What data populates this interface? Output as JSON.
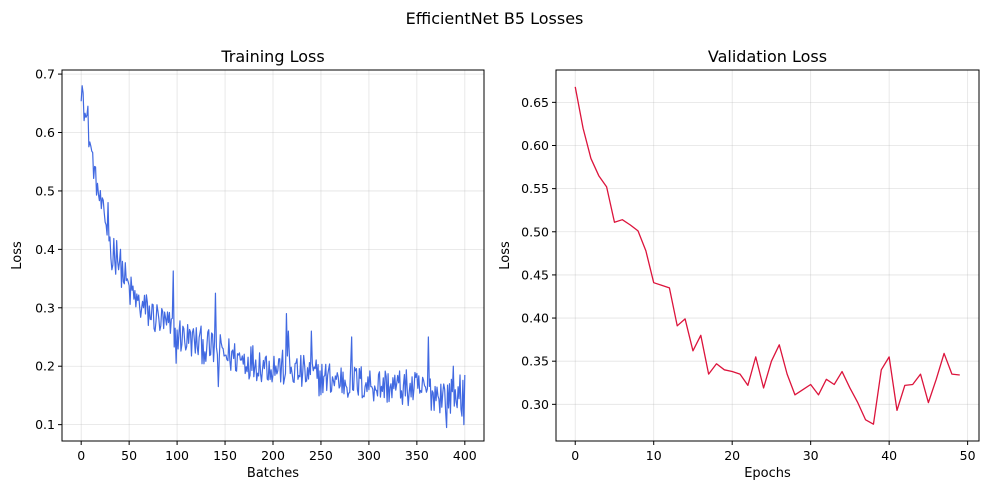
{
  "figure": {
    "title": "EfficientNet B5 Losses"
  },
  "chart_data": [
    {
      "type": "line",
      "title": "Training Loss",
      "xlabel": "Batches",
      "ylabel": "Loss",
      "xlim": [
        -20,
        420
      ],
      "ylim": [
        0.072,
        0.707
      ],
      "xticks": [
        0,
        50,
        100,
        150,
        200,
        250,
        300,
        350,
        400
      ],
      "yticks": [
        0.1,
        0.2,
        0.3,
        0.4,
        0.5,
        0.6,
        0.7
      ],
      "grid": true,
      "color": "#4169e1",
      "x_range": [
        0,
        400
      ],
      "trend_anchors": [
        [
          0,
          0.675
        ],
        [
          5,
          0.62
        ],
        [
          10,
          0.575
        ],
        [
          15,
          0.52
        ],
        [
          20,
          0.48
        ],
        [
          25,
          0.45
        ],
        [
          30,
          0.41
        ],
        [
          40,
          0.375
        ],
        [
          50,
          0.33
        ],
        [
          60,
          0.305
        ],
        [
          80,
          0.28
        ],
        [
          100,
          0.255
        ],
        [
          120,
          0.24
        ],
        [
          150,
          0.22
        ],
        [
          200,
          0.2
        ],
        [
          250,
          0.18
        ],
        [
          300,
          0.17
        ],
        [
          350,
          0.16
        ],
        [
          380,
          0.15
        ],
        [
          400,
          0.145
        ]
      ],
      "noise_amplitude": 0.032,
      "spikes": [
        [
          1,
          0.68
        ],
        [
          2,
          0.668
        ],
        [
          7,
          0.645
        ],
        [
          28,
          0.48
        ],
        [
          32,
          0.365
        ],
        [
          37,
          0.415
        ],
        [
          53,
          0.33
        ],
        [
          96,
          0.363
        ],
        [
          99,
          0.205
        ],
        [
          140,
          0.325
        ],
        [
          143,
          0.165
        ],
        [
          148,
          0.23
        ],
        [
          214,
          0.29
        ],
        [
          216,
          0.26
        ],
        [
          240,
          0.26
        ],
        [
          282,
          0.25
        ],
        [
          362,
          0.25
        ],
        [
          381,
          0.095
        ],
        [
          388,
          0.2
        ],
        [
          395,
          0.185
        ],
        [
          399,
          0.1
        ],
        [
          400,
          0.185
        ]
      ]
    },
    {
      "type": "line",
      "title": "Validation Loss",
      "xlabel": "Epochs",
      "ylabel": "Loss",
      "xlim": [
        -2.45,
        51.45
      ],
      "ylim": [
        0.2575,
        0.6875
      ],
      "xticks": [
        0,
        10,
        20,
        30,
        40,
        50
      ],
      "yticks": [
        0.3,
        0.35,
        0.4,
        0.45,
        0.5,
        0.55,
        0.6,
        0.65
      ],
      "grid": true,
      "color": "#dc143c",
      "x": [
        0,
        1,
        2,
        3,
        4,
        5,
        6,
        7,
        8,
        9,
        10,
        11,
        12,
        13,
        14,
        15,
        16,
        17,
        18,
        19,
        20,
        21,
        22,
        23,
        24,
        25,
        26,
        27,
        28,
        29,
        30,
        31,
        32,
        33,
        34,
        35,
        36,
        37,
        38,
        39,
        40,
        41,
        42,
        43,
        44,
        45,
        46,
        47,
        48,
        49
      ],
      "y": [
        0.668,
        0.62,
        0.585,
        0.565,
        0.552,
        0.511,
        0.514,
        0.508,
        0.501,
        0.478,
        0.441,
        0.438,
        0.435,
        0.391,
        0.399,
        0.362,
        0.38,
        0.335,
        0.347,
        0.34,
        0.338,
        0.335,
        0.322,
        0.355,
        0.319,
        0.35,
        0.369,
        0.335,
        0.311,
        0.317,
        0.323,
        0.311,
        0.329,
        0.323,
        0.338,
        0.319,
        0.302,
        0.282,
        0.277,
        0.34,
        0.355,
        0.293,
        0.322,
        0.323,
        0.335,
        0.302,
        0.329,
        0.359,
        0.335,
        0.334
      ]
    }
  ]
}
